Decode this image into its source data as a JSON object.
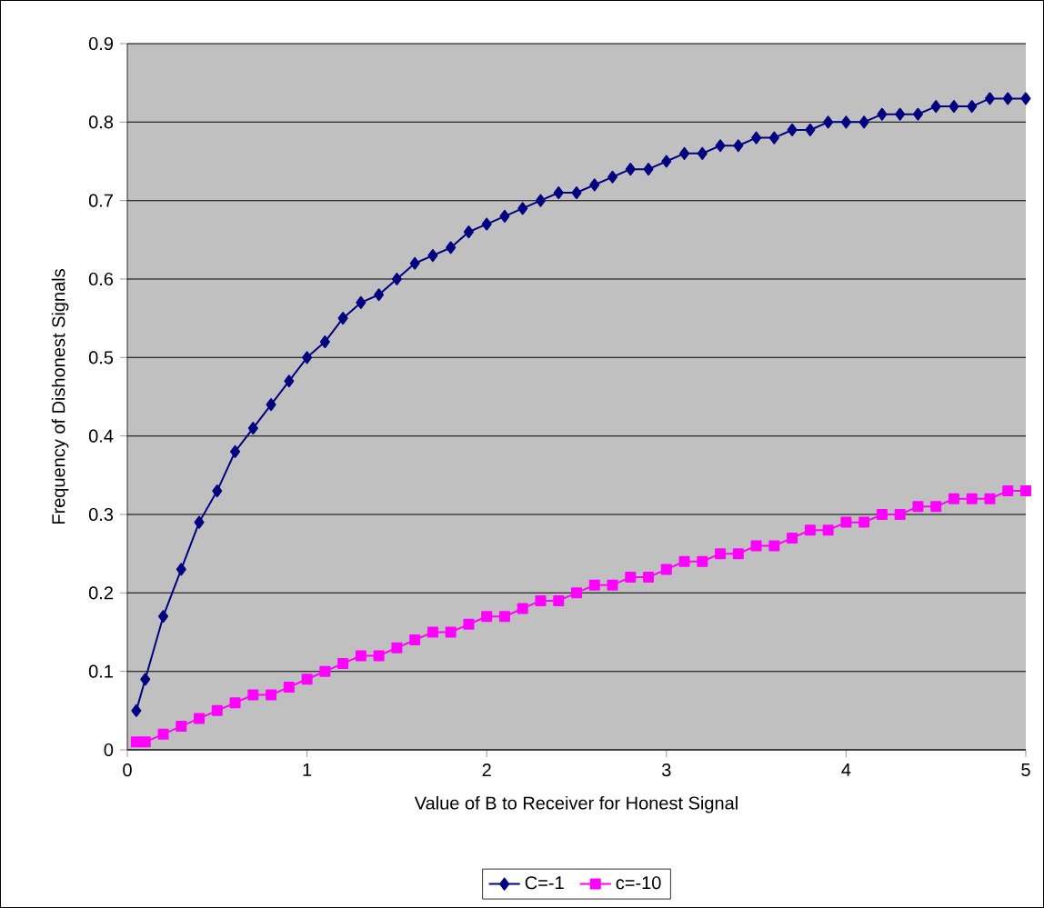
{
  "chart_data": {
    "type": "line",
    "xlabel": "Value of B to Receiver for Honest Signal",
    "ylabel": "Frequency of Dishonest Signals",
    "x": [
      0.05,
      0.1,
      0.2,
      0.3,
      0.4,
      0.5,
      0.6,
      0.7,
      0.8,
      0.9,
      1.0,
      1.1,
      1.2,
      1.3,
      1.4,
      1.5,
      1.6,
      1.7,
      1.8,
      1.9,
      2.0,
      2.1,
      2.2,
      2.3,
      2.4,
      2.5,
      2.6,
      2.7,
      2.8,
      2.9,
      3.0,
      3.1,
      3.2,
      3.3,
      3.4,
      3.5,
      3.6,
      3.7,
      3.8,
      3.9,
      4.0,
      4.1,
      4.2,
      4.3,
      4.4,
      4.5,
      4.6,
      4.7,
      4.8,
      4.9,
      5.0
    ],
    "series": [
      {
        "name": "C=-1",
        "color": "#000080",
        "marker": "diamond",
        "values": [
          0.05,
          0.09,
          0.17,
          0.23,
          0.29,
          0.33,
          0.38,
          0.41,
          0.44,
          0.47,
          0.5,
          0.52,
          0.55,
          0.57,
          0.58,
          0.6,
          0.62,
          0.63,
          0.64,
          0.66,
          0.67,
          0.68,
          0.69,
          0.7,
          0.71,
          0.71,
          0.72,
          0.73,
          0.74,
          0.74,
          0.75,
          0.76,
          0.76,
          0.77,
          0.77,
          0.78,
          0.78,
          0.79,
          0.79,
          0.8,
          0.8,
          0.8,
          0.81,
          0.81,
          0.81,
          0.82,
          0.82,
          0.82,
          0.83,
          0.83,
          0.83
        ]
      },
      {
        "name": "c=-10",
        "color": "#ff00ff",
        "marker": "square",
        "values": [
          0.01,
          0.01,
          0.02,
          0.03,
          0.04,
          0.05,
          0.06,
          0.07,
          0.07,
          0.08,
          0.09,
          0.1,
          0.11,
          0.12,
          0.12,
          0.13,
          0.14,
          0.15,
          0.15,
          0.16,
          0.17,
          0.17,
          0.18,
          0.19,
          0.19,
          0.2,
          0.21,
          0.21,
          0.22,
          0.22,
          0.23,
          0.24,
          0.24,
          0.25,
          0.25,
          0.26,
          0.26,
          0.27,
          0.28,
          0.28,
          0.29,
          0.29,
          0.3,
          0.3,
          0.31,
          0.31,
          0.32,
          0.32,
          0.32,
          0.33,
          0.33
        ]
      }
    ],
    "xlim": [
      0,
      5
    ],
    "xticks": [
      0,
      1,
      2,
      3,
      4,
      5
    ],
    "ylim": [
      0,
      0.9
    ],
    "yticks": [
      0,
      0.1,
      0.2,
      0.3,
      0.4,
      0.5,
      0.6,
      0.7,
      0.8,
      0.9
    ],
    "grid": "y",
    "legend": "bottom",
    "line_style": "solid"
  }
}
